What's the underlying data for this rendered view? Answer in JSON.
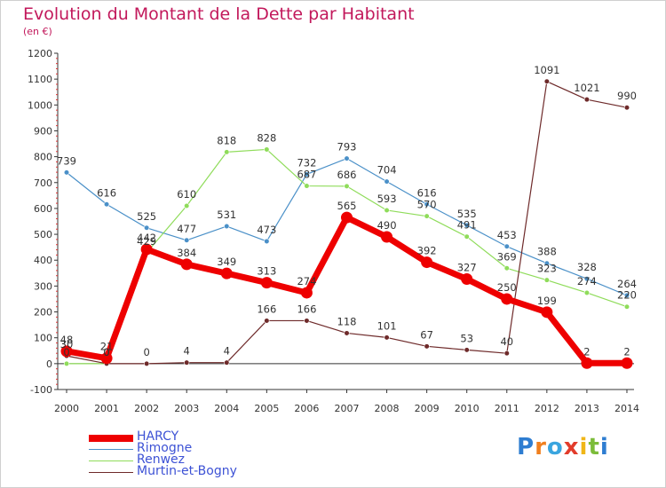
{
  "title": "Evolution du Montant de la Dette par Habitant",
  "unit": "(en €)",
  "logo": {
    "text": "Proxiti",
    "colors": [
      "#2e7dd1",
      "#f07f1e",
      "#3aa5df",
      "#e23c2b",
      "#f0b618",
      "#7cbc3a",
      "#2e7dd1"
    ]
  },
  "chart_data": {
    "type": "line",
    "title": "Evolution du Montant de la Dette par Habitant",
    "ylabel": "(en €)",
    "xlabel": "",
    "ylim": [
      -100,
      1200
    ],
    "yticks": [
      -100,
      0,
      100,
      200,
      300,
      400,
      500,
      600,
      700,
      800,
      900,
      1000,
      1100,
      1200
    ],
    "grid": false,
    "legend_position": "bottom-left",
    "x": [
      "2000",
      "2001",
      "2002",
      "2003",
      "2004",
      "2005",
      "2006",
      "2007",
      "2008",
      "2009",
      "2010",
      "2011",
      "2012",
      "2013",
      "2014"
    ],
    "series": [
      {
        "name": "Rimogne",
        "color": "#4a90c8",
        "width": 1.2,
        "marker": 2.8,
        "values": [
          739,
          616,
          525,
          477,
          531,
          473,
          732,
          793,
          704,
          616,
          535,
          453,
          388,
          328,
          264
        ]
      },
      {
        "name": "Renwez",
        "color": "#8fdc5a",
        "width": 1.2,
        "marker": 2.8,
        "values": [
          0,
          0,
          429,
          610,
          818,
          828,
          687,
          686,
          593,
          570,
          491,
          369,
          323,
          274,
          220
        ]
      },
      {
        "name": "Murtin-et-Bogny",
        "color": "#6e2a2a",
        "width": 1.2,
        "marker": 2.8,
        "values": [
          30,
          0,
          0,
          4,
          4,
          166,
          166,
          118,
          101,
          67,
          53,
          40,
          1091,
          1021,
          990
        ]
      },
      {
        "name": "HARCY",
        "color": "#ee0000",
        "width": 7,
        "marker": 6.5,
        "values": [
          48,
          21,
          442,
          384,
          349,
          313,
          274,
          565,
          490,
          392,
          327,
          250,
          199,
          2,
          2
        ]
      }
    ],
    "legend_order": [
      "HARCY",
      "Rimogne",
      "Renwez",
      "Murtin-et-Bogny"
    ]
  }
}
